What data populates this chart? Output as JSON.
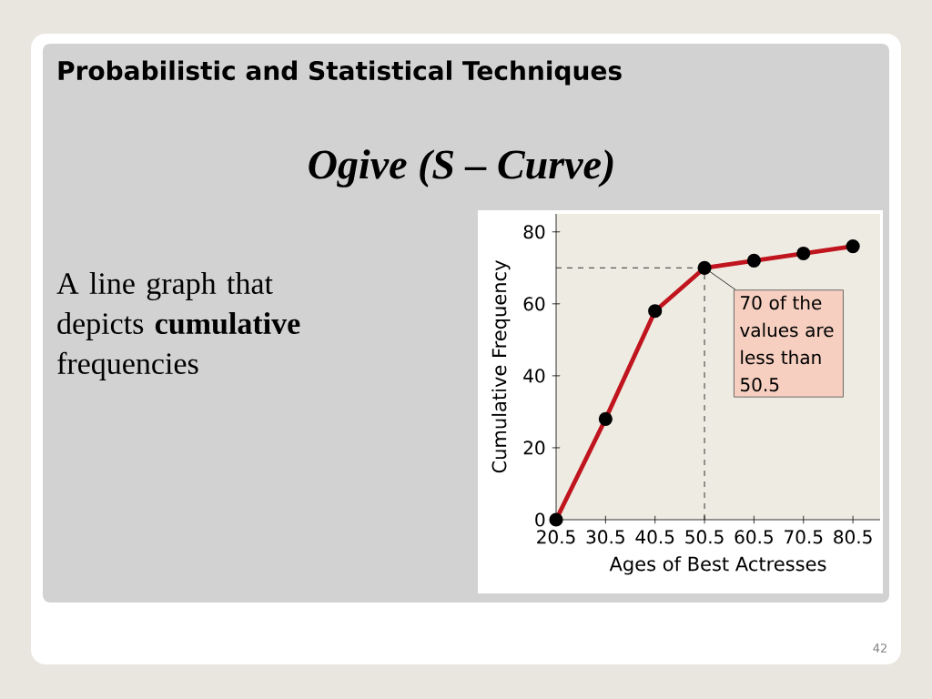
{
  "chart_data": {
    "type": "line",
    "title": "Probabilistic and Statistical Techniques",
    "subtitle": "Ogive  (S – Curve)",
    "xlabel": "Ages of Best Actresses",
    "ylabel": "Cumulative Frequency",
    "x": [
      20.5,
      30.5,
      40.5,
      50.5,
      60.5,
      70.5,
      80.5
    ],
    "series": [
      {
        "color": "#c0141e",
        "values": [
          0,
          28,
          58,
          70,
          72,
          74,
          76
        ]
      }
    ],
    "xlim": [
      20.5,
      86
    ],
    "ylim": [
      0,
      85
    ],
    "xticks": [
      20.5,
      30.5,
      40.5,
      50.5,
      60.5,
      70.5,
      80.5
    ],
    "yticks": [
      0,
      20,
      40,
      60,
      80
    ],
    "ref_lines": [
      {
        "axis": "y",
        "value": 70,
        "line_style": "dashed"
      },
      {
        "axis": "x",
        "value": 50.5,
        "line_style": "dashed"
      }
    ],
    "annotations": [
      "A line graph that depicts **cumulative** frequencies",
      {
        "text": "70 of the values are less than 50.5",
        "x": 50.5,
        "y": 70
      },
      "42"
    ],
    "grid": false,
    "marker": "circle",
    "line_style": "solid"
  }
}
